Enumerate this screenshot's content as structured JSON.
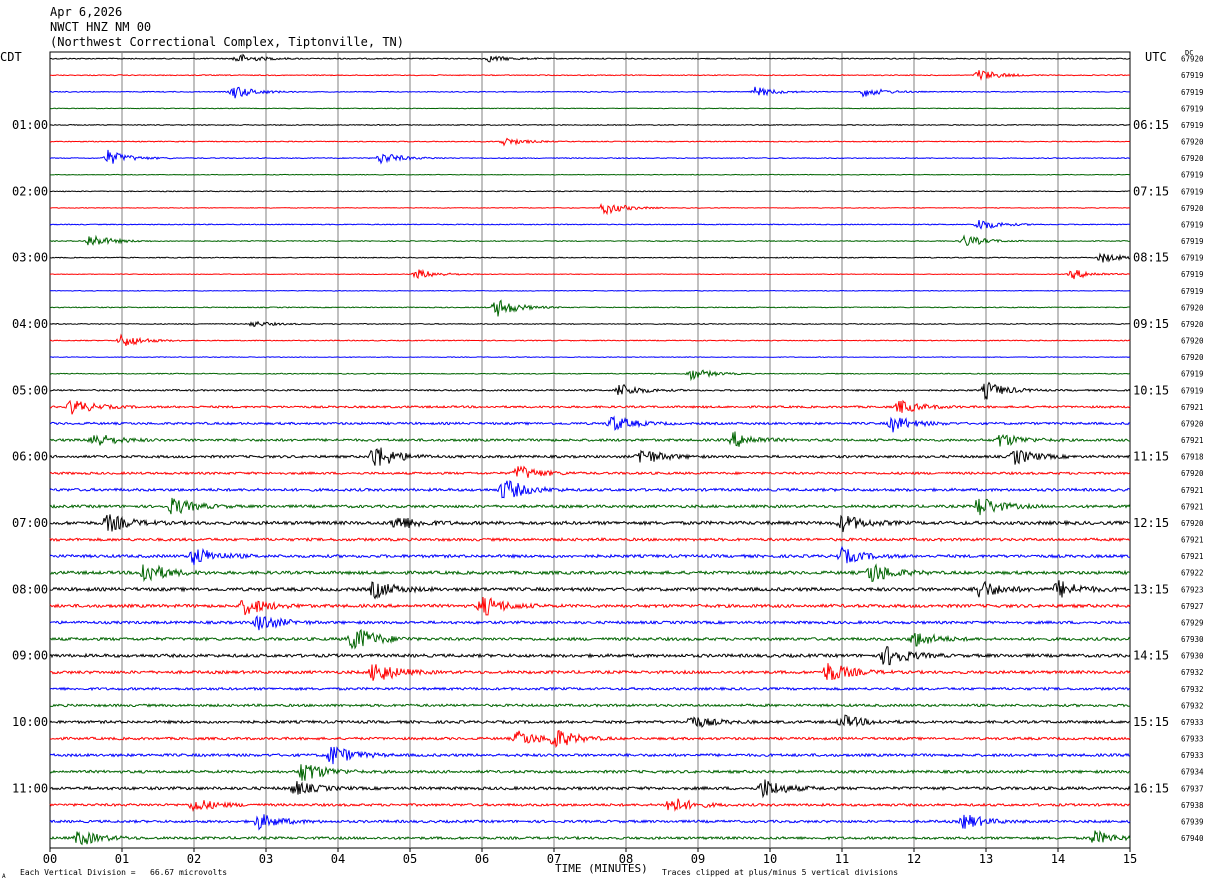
{
  "header": {
    "date": "Apr 6,2026",
    "station": "NWCT HNZ NM 00",
    "location": "(Northwest Correctional Complex, Tiptonville, TN)"
  },
  "left_tz": "CDT",
  "right_tz": "UTC",
  "dc_label": "DC",
  "footer": {
    "scale": "Each Vertical Division =   66.67 microvolts",
    "xlabel": "TIME (MINUTES)",
    "clip": "Traces clipped at plus/minus 5 vertical divisions",
    "mark": "A"
  },
  "colors": {
    "trace_cycle": [
      "#000000",
      "#ff0000",
      "#0000ff",
      "#006400"
    ],
    "grid": "#808080"
  },
  "chart_data": {
    "type": "line",
    "title": "NWCT HNZ NM 00",
    "xlabel": "TIME (MINUTES)",
    "x_ticks": [
      "00",
      "01",
      "02",
      "03",
      "04",
      "05",
      "06",
      "07",
      "08",
      "09",
      "10",
      "11",
      "12",
      "13",
      "14",
      "15"
    ],
    "xlim": [
      0,
      15
    ],
    "rows_per_hour": 4,
    "left_hour_labels": [
      "01:00",
      "02:00",
      "03:00",
      "04:00",
      "05:00",
      "06:00",
      "07:00",
      "08:00",
      "09:00",
      "10:00",
      "11:00"
    ],
    "right_hour_labels": [
      "06:15",
      "07:15",
      "08:15",
      "09:15",
      "10:15",
      "11:15",
      "12:15",
      "13:15",
      "14:15",
      "15:15",
      "16:15"
    ],
    "hour_label_start_row": 4,
    "dc_offsets": [
      "67920",
      "67919",
      "67919",
      "67919",
      "67919",
      "67920",
      "67920",
      "67919",
      "67919",
      "67920",
      "67919",
      "67919",
      "67919",
      "67919",
      "67919",
      "67920",
      "67920",
      "67920",
      "67920",
      "67919",
      "67919",
      "67921",
      "67920",
      "67921",
      "67918",
      "67920",
      "67921",
      "67921",
      "67920",
      "67921",
      "67921",
      "67922",
      "67923",
      "67927",
      "67929",
      "67930",
      "67930",
      "67932",
      "67932",
      "67932",
      "67933",
      "67933",
      "67933",
      "67934",
      "67937",
      "67938",
      "67939",
      "67940"
    ],
    "activity_level": [
      0.25,
      0.2,
      0.2,
      0.15,
      0.2,
      0.2,
      0.2,
      0.15,
      0.2,
      0.15,
      0.2,
      0.2,
      0.2,
      0.15,
      0.15,
      0.2,
      0.2,
      0.2,
      0.15,
      0.2,
      0.35,
      0.45,
      0.5,
      0.55,
      0.55,
      0.5,
      0.6,
      0.6,
      0.75,
      0.6,
      0.65,
      0.7,
      0.75,
      0.7,
      0.6,
      0.65,
      0.7,
      0.65,
      0.55,
      0.55,
      0.6,
      0.55,
      0.6,
      0.6,
      0.65,
      0.55,
      0.55,
      0.55
    ],
    "events": [
      {
        "row": 0,
        "minute": 2.6,
        "amp": 5
      },
      {
        "row": 0,
        "minute": 6.1,
        "amp": 3
      },
      {
        "row": 1,
        "minute": 12.9,
        "amp": 6
      },
      {
        "row": 2,
        "minute": 2.55,
        "amp": 7
      },
      {
        "row": 2,
        "minute": 9.8,
        "amp": 5
      },
      {
        "row": 2,
        "minute": 11.3,
        "amp": 5
      },
      {
        "row": 5,
        "minute": 6.3,
        "amp": 4
      },
      {
        "row": 6,
        "minute": 0.8,
        "amp": 8
      },
      {
        "row": 6,
        "minute": 4.6,
        "amp": 6
      },
      {
        "row": 9,
        "minute": 7.7,
        "amp": 7
      },
      {
        "row": 10,
        "minute": 12.9,
        "amp": 6
      },
      {
        "row": 11,
        "minute": 0.55,
        "amp": 7
      },
      {
        "row": 11,
        "minute": 12.7,
        "amp": 6
      },
      {
        "row": 12,
        "minute": 14.6,
        "amp": 5
      },
      {
        "row": 13,
        "minute": 5.1,
        "amp": 5
      },
      {
        "row": 13,
        "minute": 14.2,
        "amp": 5
      },
      {
        "row": 15,
        "minute": 6.2,
        "amp": 10
      },
      {
        "row": 16,
        "minute": 2.8,
        "amp": 3
      },
      {
        "row": 17,
        "minute": 1.0,
        "amp": 7
      },
      {
        "row": 19,
        "minute": 8.9,
        "amp": 6
      },
      {
        "row": 20,
        "minute": 7.9,
        "amp": 7
      },
      {
        "row": 20,
        "minute": 13.0,
        "amp": 9
      },
      {
        "row": 21,
        "minute": 0.3,
        "amp": 8
      },
      {
        "row": 21,
        "minute": 11.8,
        "amp": 7
      },
      {
        "row": 22,
        "minute": 7.8,
        "amp": 8
      },
      {
        "row": 22,
        "minute": 11.7,
        "amp": 8
      },
      {
        "row": 23,
        "minute": 0.6,
        "amp": 8
      },
      {
        "row": 23,
        "minute": 9.5,
        "amp": 8
      },
      {
        "row": 23,
        "minute": 13.2,
        "amp": 7
      },
      {
        "row": 24,
        "minute": 4.5,
        "amp": 14
      },
      {
        "row": 24,
        "minute": 8.2,
        "amp": 9
      },
      {
        "row": 24,
        "minute": 13.4,
        "amp": 8
      },
      {
        "row": 25,
        "minute": 6.5,
        "amp": 8
      },
      {
        "row": 26,
        "minute": 6.3,
        "amp": 12
      },
      {
        "row": 27,
        "minute": 1.7,
        "amp": 9
      },
      {
        "row": 27,
        "minute": 12.9,
        "amp": 11
      },
      {
        "row": 28,
        "minute": 0.8,
        "amp": 9
      },
      {
        "row": 28,
        "minute": 4.8,
        "amp": 8
      },
      {
        "row": 28,
        "minute": 11.0,
        "amp": 9
      },
      {
        "row": 30,
        "minute": 2.0,
        "amp": 10
      },
      {
        "row": 30,
        "minute": 11.0,
        "amp": 8
      },
      {
        "row": 31,
        "minute": 1.3,
        "amp": 12
      },
      {
        "row": 31,
        "minute": 11.4,
        "amp": 11
      },
      {
        "row": 32,
        "minute": 4.5,
        "amp": 9
      },
      {
        "row": 32,
        "minute": 12.9,
        "amp": 10
      },
      {
        "row": 32,
        "minute": 14.0,
        "amp": 9
      },
      {
        "row": 33,
        "minute": 2.7,
        "amp": 10
      },
      {
        "row": 33,
        "minute": 6.0,
        "amp": 11
      },
      {
        "row": 34,
        "minute": 2.9,
        "amp": 9
      },
      {
        "row": 35,
        "minute": 4.2,
        "amp": 16
      },
      {
        "row": 35,
        "minute": 12.0,
        "amp": 8
      },
      {
        "row": 36,
        "minute": 11.6,
        "amp": 12
      },
      {
        "row": 37,
        "minute": 4.5,
        "amp": 12
      },
      {
        "row": 37,
        "minute": 10.8,
        "amp": 11
      },
      {
        "row": 40,
        "minute": 8.9,
        "amp": 7
      },
      {
        "row": 40,
        "minute": 11.0,
        "amp": 7
      },
      {
        "row": 41,
        "minute": 6.5,
        "amp": 8
      },
      {
        "row": 41,
        "minute": 7.0,
        "amp": 10
      },
      {
        "row": 42,
        "minute": 3.9,
        "amp": 11
      },
      {
        "row": 43,
        "minute": 3.5,
        "amp": 12
      },
      {
        "row": 44,
        "minute": 9.9,
        "amp": 10
      },
      {
        "row": 44,
        "minute": 3.4,
        "amp": 7
      },
      {
        "row": 45,
        "minute": 8.6,
        "amp": 9
      },
      {
        "row": 45,
        "minute": 2.0,
        "amp": 7
      },
      {
        "row": 46,
        "minute": 2.9,
        "amp": 8
      },
      {
        "row": 46,
        "minute": 12.7,
        "amp": 8
      },
      {
        "row": 47,
        "minute": 0.4,
        "amp": 8
      },
      {
        "row": 47,
        "minute": 14.5,
        "amp": 7
      }
    ]
  }
}
